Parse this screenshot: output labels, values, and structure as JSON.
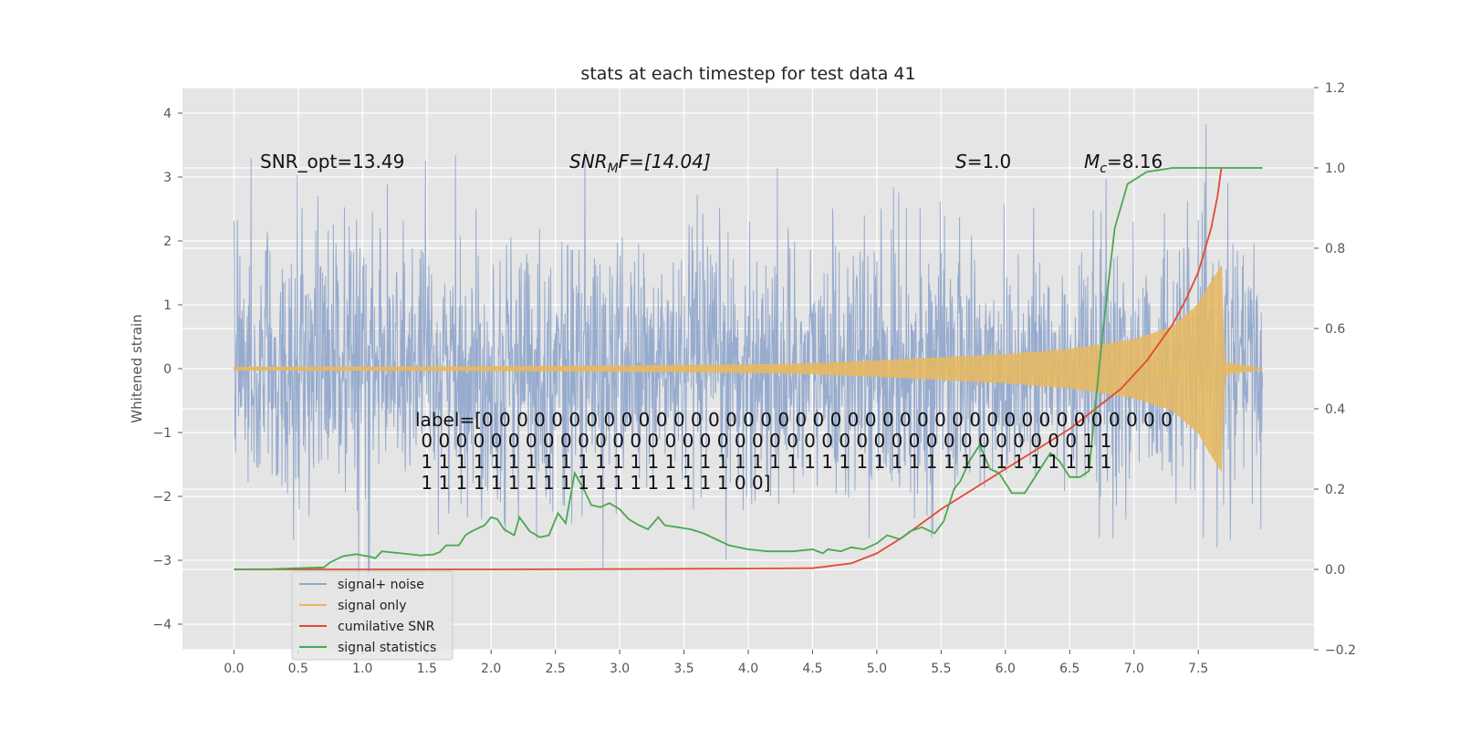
{
  "chart_data": {
    "type": "line",
    "title": "stats at each timestep for test data 41",
    "ylabel": "Whitened strain",
    "xlabel": "",
    "xlim": [
      -0.4,
      8.4
    ],
    "ylim": [
      -4.4,
      4.4
    ],
    "y2lim": [
      -0.2,
      1.2
    ],
    "x_ticks": [
      0.0,
      0.5,
      1.0,
      1.5,
      2.0,
      2.5,
      3.0,
      3.5,
      4.0,
      4.5,
      5.0,
      5.5,
      6.0,
      6.5,
      7.0,
      7.5
    ],
    "x_tick_labels": [
      "0.0",
      "0.5",
      "1.0",
      "1.5",
      "2.0",
      "2.5",
      "3.0",
      "3.5",
      "4.0",
      "4.5",
      "5.0",
      "5.5",
      "6.0",
      "6.5",
      "7.0",
      "7.5"
    ],
    "y_ticks": [
      4,
      3,
      2,
      1,
      0,
      -1,
      -2,
      -3,
      -4
    ],
    "y_tick_labels": [
      "4",
      "3",
      "2",
      "1",
      "0",
      "−1",
      "−2",
      "−3",
      "−4"
    ],
    "y2_ticks": [
      1.2,
      1.0,
      0.8,
      0.6,
      0.4,
      0.2,
      0.0,
      -0.2
    ],
    "y2_tick_labels": [
      "1.2",
      "1.0",
      "0.8",
      "0.6",
      "0.4",
      "0.2",
      "0.0",
      "−0.2"
    ],
    "grid": true,
    "legend_position": "lower-left",
    "annotations": {
      "snr_opt": "SNR_opt=13.49",
      "snr_mf_prefix": "SNR",
      "snr_mf_sub": "M",
      "snr_mf_suffix": "F=[14.04]",
      "s_prefix": "S",
      "s_suffix": "=1.0",
      "mc_prefix": "M",
      "mc_sub": "c",
      "mc_suffix": "=8.16",
      "label_lines": [
        "label=[0 0 0 0 0 0 0 0 0 0 0 0 0 0 0 0 0 0 0 0 0 0 0 0 0 0 0 0 0 0 0 0 0 0 0 0 0 0 0 0",
        " 0 0 0 0 0 0 0 0 0 0 0 0 0 0 0 0 0 0 0 0 0 0 0 0 0 0 0 0 0 0 0 0 0 0 0 0 0 0 1 1",
        " 1 1 1 1 1 1 1 1 1 1 1 1 1 1 1 1 1 1 1 1 1 1 1 1 1 1 1 1 1 1 1 1 1 1 1 1 1 1 1 1",
        " 1 1 1 1 1 1 1 1 1 1 1 1 1 1 1 1 1 1 0 0]"
      ]
    },
    "legend": [
      {
        "label": "signal+ noise",
        "color": "#92a8cc"
      },
      {
        "label": "signal only",
        "color": "#e8b85e"
      },
      {
        "label": "cumilative SNR",
        "color": "#e24a33"
      },
      {
        "label": "signal statistics",
        "color": "#4aa84f"
      }
    ],
    "series": [
      {
        "name": "signal+ noise",
        "axis": "left",
        "kind": "noise",
        "color": "#92a8cc",
        "x_start": 0.0,
        "x_end": 8.0,
        "noise_sigma": 1.0,
        "visible_range": [
          -4.0,
          4.0
        ]
      },
      {
        "name": "signal only",
        "axis": "left",
        "kind": "chirp",
        "color": "#e8b85e",
        "x_start": 0.0,
        "x_end": 8.0,
        "merger_x": 7.68,
        "envelope": [
          [
            0.0,
            0.02
          ],
          [
            2.0,
            0.03
          ],
          [
            3.0,
            0.04
          ],
          [
            4.0,
            0.06
          ],
          [
            4.5,
            0.08
          ],
          [
            5.0,
            0.12
          ],
          [
            5.5,
            0.17
          ],
          [
            6.0,
            0.22
          ],
          [
            6.5,
            0.3
          ],
          [
            7.0,
            0.45
          ],
          [
            7.3,
            0.65
          ],
          [
            7.5,
            1.0
          ],
          [
            7.6,
            1.35
          ],
          [
            7.68,
            1.6
          ],
          [
            7.7,
            0.1
          ],
          [
            8.0,
            0.0
          ]
        ]
      },
      {
        "name": "cumilative SNR",
        "axis": "right",
        "color": "#e24a33",
        "points": [
          [
            0.0,
            0.0
          ],
          [
            1.0,
            0.0
          ],
          [
            2.0,
            0.0
          ],
          [
            3.0,
            0.001
          ],
          [
            4.0,
            0.002
          ],
          [
            4.5,
            0.003
          ],
          [
            4.8,
            0.015
          ],
          [
            5.0,
            0.04
          ],
          [
            5.2,
            0.08
          ],
          [
            5.5,
            0.15
          ],
          [
            5.8,
            0.21
          ],
          [
            6.0,
            0.25
          ],
          [
            6.3,
            0.31
          ],
          [
            6.5,
            0.35
          ],
          [
            6.7,
            0.4
          ],
          [
            6.9,
            0.45
          ],
          [
            7.1,
            0.52
          ],
          [
            7.3,
            0.61
          ],
          [
            7.4,
            0.67
          ],
          [
            7.5,
            0.74
          ],
          [
            7.6,
            0.85
          ],
          [
            7.65,
            0.93
          ],
          [
            7.68,
            1.0
          ]
        ]
      },
      {
        "name": "signal statistics",
        "axis": "right",
        "color": "#4aa84f",
        "points": [
          [
            0.0,
            0.0
          ],
          [
            0.3,
            0.001
          ],
          [
            0.5,
            0.003
          ],
          [
            0.7,
            0.005
          ],
          [
            0.75,
            0.018
          ],
          [
            0.85,
            0.033
          ],
          [
            0.95,
            0.038
          ],
          [
            1.05,
            0.032
          ],
          [
            1.1,
            0.028
          ],
          [
            1.15,
            0.045
          ],
          [
            1.3,
            0.04
          ],
          [
            1.45,
            0.035
          ],
          [
            1.55,
            0.037
          ],
          [
            1.6,
            0.043
          ],
          [
            1.65,
            0.06
          ],
          [
            1.75,
            0.06
          ],
          [
            1.8,
            0.085
          ],
          [
            1.85,
            0.095
          ],
          [
            1.95,
            0.11
          ],
          [
            2.0,
            0.13
          ],
          [
            2.05,
            0.125
          ],
          [
            2.1,
            0.1
          ],
          [
            2.18,
            0.085
          ],
          [
            2.22,
            0.13
          ],
          [
            2.3,
            0.095
          ],
          [
            2.38,
            0.08
          ],
          [
            2.45,
            0.085
          ],
          [
            2.52,
            0.14
          ],
          [
            2.58,
            0.115
          ],
          [
            2.65,
            0.24
          ],
          [
            2.72,
            0.2
          ],
          [
            2.78,
            0.16
          ],
          [
            2.85,
            0.155
          ],
          [
            2.92,
            0.165
          ],
          [
            3.0,
            0.15
          ],
          [
            3.07,
            0.125
          ],
          [
            3.15,
            0.11
          ],
          [
            3.22,
            0.1
          ],
          [
            3.3,
            0.13
          ],
          [
            3.35,
            0.11
          ],
          [
            3.45,
            0.105
          ],
          [
            3.55,
            0.1
          ],
          [
            3.65,
            0.09
          ],
          [
            3.75,
            0.075
          ],
          [
            3.85,
            0.06
          ],
          [
            4.0,
            0.05
          ],
          [
            4.15,
            0.045
          ],
          [
            4.35,
            0.045
          ],
          [
            4.5,
            0.05
          ],
          [
            4.58,
            0.04
          ],
          [
            4.62,
            0.05
          ],
          [
            4.72,
            0.045
          ],
          [
            4.8,
            0.055
          ],
          [
            4.9,
            0.05
          ],
          [
            5.0,
            0.065
          ],
          [
            5.08,
            0.085
          ],
          [
            5.18,
            0.075
          ],
          [
            5.26,
            0.095
          ],
          [
            5.35,
            0.105
          ],
          [
            5.45,
            0.09
          ],
          [
            5.52,
            0.12
          ],
          [
            5.6,
            0.2
          ],
          [
            5.65,
            0.22
          ],
          [
            5.72,
            0.27
          ],
          [
            5.8,
            0.31
          ],
          [
            5.88,
            0.25
          ],
          [
            5.95,
            0.24
          ],
          [
            6.05,
            0.19
          ],
          [
            6.15,
            0.19
          ],
          [
            6.25,
            0.24
          ],
          [
            6.35,
            0.29
          ],
          [
            6.42,
            0.27
          ],
          [
            6.5,
            0.23
          ],
          [
            6.58,
            0.23
          ],
          [
            6.65,
            0.245
          ],
          [
            6.75,
            0.57
          ],
          [
            6.85,
            0.85
          ],
          [
            6.95,
            0.96
          ],
          [
            7.1,
            0.99
          ],
          [
            7.3,
            1.0
          ],
          [
            7.68,
            1.0
          ],
          [
            8.0,
            1.0
          ]
        ]
      }
    ]
  }
}
